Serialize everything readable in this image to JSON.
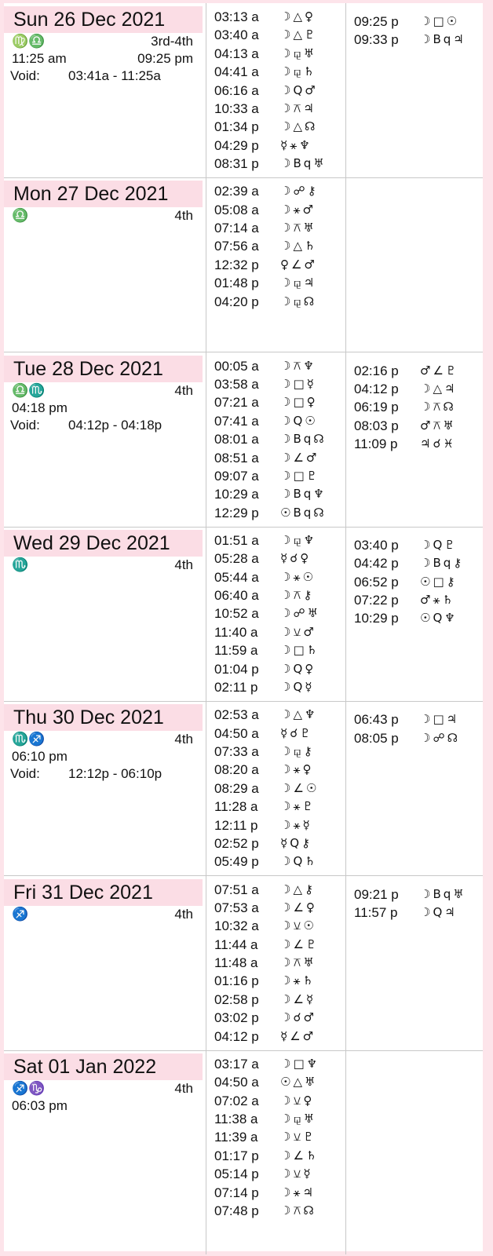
{
  "colors": {
    "header_bg": "#fbdde5",
    "border": "#fde4ea"
  },
  "days": [
    {
      "date": "Sun 26 Dec 2021",
      "signs": "♍♎",
      "phase": "3rd-4th",
      "ingress": "11:25 am",
      "extra_time": "09:25 pm",
      "void_label": "Void:",
      "void_range": "03:41a -  11:25a",
      "col1": [
        {
          "t": "03:13 a",
          "g": "☽△♀"
        },
        {
          "t": "03:40 a",
          "g": "☽△♇"
        },
        {
          "t": "04:13 a",
          "g": "☽⚼♅"
        },
        {
          "t": "04:41 a",
          "g": "☽⚼♄"
        },
        {
          "t": "06:16 a",
          "g": "☽Q♂"
        },
        {
          "t": "10:33 a",
          "g": "☽⚻♃"
        },
        {
          "t": "01:34 p",
          "g": "☽△☊"
        },
        {
          "t": "04:29 p",
          "g": "☿⚹♆"
        },
        {
          "t": "08:31 p",
          "g": "☽Bq♅"
        }
      ],
      "col2": [
        {
          "t": "09:25 p",
          "g": "☽□☉"
        },
        {
          "t": "09:33 p",
          "g": "☽Bq♃"
        }
      ]
    },
    {
      "date": "Mon 27 Dec 2021",
      "signs": "♎",
      "phase": "4th",
      "col1": [
        {
          "t": "02:39 a",
          "g": "☽☍⚷"
        },
        {
          "t": "05:08 a",
          "g": "☽⚹♂"
        },
        {
          "t": "07:14 a",
          "g": "☽⚻♅"
        },
        {
          "t": "07:56 a",
          "g": "☽△♄"
        },
        {
          "t": "12:32 p",
          "g": "♀∠♂"
        },
        {
          "t": "01:48 p",
          "g": "☽⚼♃"
        },
        {
          "t": "04:20 p",
          "g": "☽⚼☊"
        }
      ],
      "col2": []
    },
    {
      "date": "Tue 28 Dec 2021",
      "signs": "♎♏",
      "phase": "4th",
      "ingress": "04:18 pm",
      "void_label": "Void:",
      "void_range": "04:12p -  04:18p",
      "col1": [
        {
          "t": "00:05 a",
          "g": "☽⚻♆"
        },
        {
          "t": "03:58 a",
          "g": "☽□☿"
        },
        {
          "t": "07:21 a",
          "g": "☽□♀"
        },
        {
          "t": "07:41 a",
          "g": "☽Q☉"
        },
        {
          "t": "08:01 a",
          "g": "☽Bq☊"
        },
        {
          "t": "08:51 a",
          "g": "☽∠♂"
        },
        {
          "t": "09:07 a",
          "g": "☽□♇"
        },
        {
          "t": "10:29 a",
          "g": "☽Bq♆"
        },
        {
          "t": "12:29 p",
          "g": "☉Bq☊"
        }
      ],
      "col2": [
        {
          "t": "02:16 p",
          "g": "♂∠♇"
        },
        {
          "t": "04:12 p",
          "g": "☽△♃"
        },
        {
          "t": "06:19 p",
          "g": "☽⚻☊"
        },
        {
          "t": "08:03 p",
          "g": "♂⚻♅"
        },
        {
          "t": "11:09 p",
          "g": "♃☌♓"
        }
      ]
    },
    {
      "date": "Wed 29 Dec 2021",
      "signs": "♏",
      "phase": "4th",
      "col1": [
        {
          "t": "01:51 a",
          "g": "☽⚼♆"
        },
        {
          "t": "05:28 a",
          "g": "☿☌♀"
        },
        {
          "t": "05:44 a",
          "g": "☽⚹☉"
        },
        {
          "t": "06:40 a",
          "g": "☽⚻⚷"
        },
        {
          "t": "10:52 a",
          "g": "☽☍♅"
        },
        {
          "t": "11:40 a",
          "g": "☽⚺♂"
        },
        {
          "t": "11:59 a",
          "g": "☽□♄"
        },
        {
          "t": "01:04 p",
          "g": "☽Q♀"
        },
        {
          "t": "02:11 p",
          "g": "☽Q☿"
        }
      ],
      "col2": [
        {
          "t": "03:40 p",
          "g": "☽Q♇"
        },
        {
          "t": "04:42 p",
          "g": "☽Bq⚷"
        },
        {
          "t": "06:52 p",
          "g": "☉□⚷"
        },
        {
          "t": "07:22 p",
          "g": "♂⚹♄"
        },
        {
          "t": "10:29 p",
          "g": "☉Q♆"
        }
      ]
    },
    {
      "date": "Thu 30 Dec 2021",
      "signs": "♏♐",
      "phase": "4th",
      "ingress": "06:10 pm",
      "void_label": "Void:",
      "void_range": "12:12p -  06:10p",
      "col1": [
        {
          "t": "02:53 a",
          "g": "☽△♆"
        },
        {
          "t": "04:50 a",
          "g": "☿☌♇"
        },
        {
          "t": "07:33 a",
          "g": "☽⚼⚷"
        },
        {
          "t": "08:20 a",
          "g": "☽⚹♀"
        },
        {
          "t": "08:29 a",
          "g": "☽∠☉"
        },
        {
          "t": "11:28 a",
          "g": "☽⚹♇"
        },
        {
          "t": "12:11 p",
          "g": "☽⚹☿"
        },
        {
          "t": "02:52 p",
          "g": "☿Q⚷"
        },
        {
          "t": "05:49 p",
          "g": "☽Q♄"
        }
      ],
      "col2": [
        {
          "t": "06:43 p",
          "g": "☽□♃"
        },
        {
          "t": "08:05 p",
          "g": "☽☍☊"
        }
      ]
    },
    {
      "date": "Fri 31 Dec 2021",
      "signs": "♐",
      "phase": "4th",
      "col1": [
        {
          "t": "07:51 a",
          "g": "☽△⚷"
        },
        {
          "t": "07:53 a",
          "g": "☽∠♀"
        },
        {
          "t": "10:32 a",
          "g": "☽⚺☉"
        },
        {
          "t": "11:44 a",
          "g": "☽∠♇"
        },
        {
          "t": "11:48 a",
          "g": "☽⚻♅"
        },
        {
          "t": "01:16 p",
          "g": "☽⚹♄"
        },
        {
          "t": "02:58 p",
          "g": "☽∠☿"
        },
        {
          "t": "03:02 p",
          "g": "☽☌♂"
        },
        {
          "t": "04:12 p",
          "g": "☿∠♂"
        }
      ],
      "col2": [
        {
          "t": "09:21 p",
          "g": "☽Bq♅"
        },
        {
          "t": "11:57 p",
          "g": "☽Q♃"
        }
      ]
    },
    {
      "date": "Sat 01 Jan 2022",
      "signs": "♐♑",
      "phase": "4th",
      "ingress": "06:03 pm",
      "col1": [
        {
          "t": "03:17 a",
          "g": "☽□♆"
        },
        {
          "t": "04:50 a",
          "g": "☉△♅"
        },
        {
          "t": "07:02 a",
          "g": "☽⚺♀"
        },
        {
          "t": "11:38 a",
          "g": "☽⚼♅"
        },
        {
          "t": "11:39 a",
          "g": "☽⚺♇"
        },
        {
          "t": "01:17 p",
          "g": "☽∠♄"
        },
        {
          "t": "05:14 p",
          "g": "☽⚺☿"
        },
        {
          "t": "07:14 p",
          "g": "☽⚹♃"
        },
        {
          "t": "07:48 p",
          "g": "☽⚻☊"
        }
      ],
      "col2": []
    }
  ]
}
